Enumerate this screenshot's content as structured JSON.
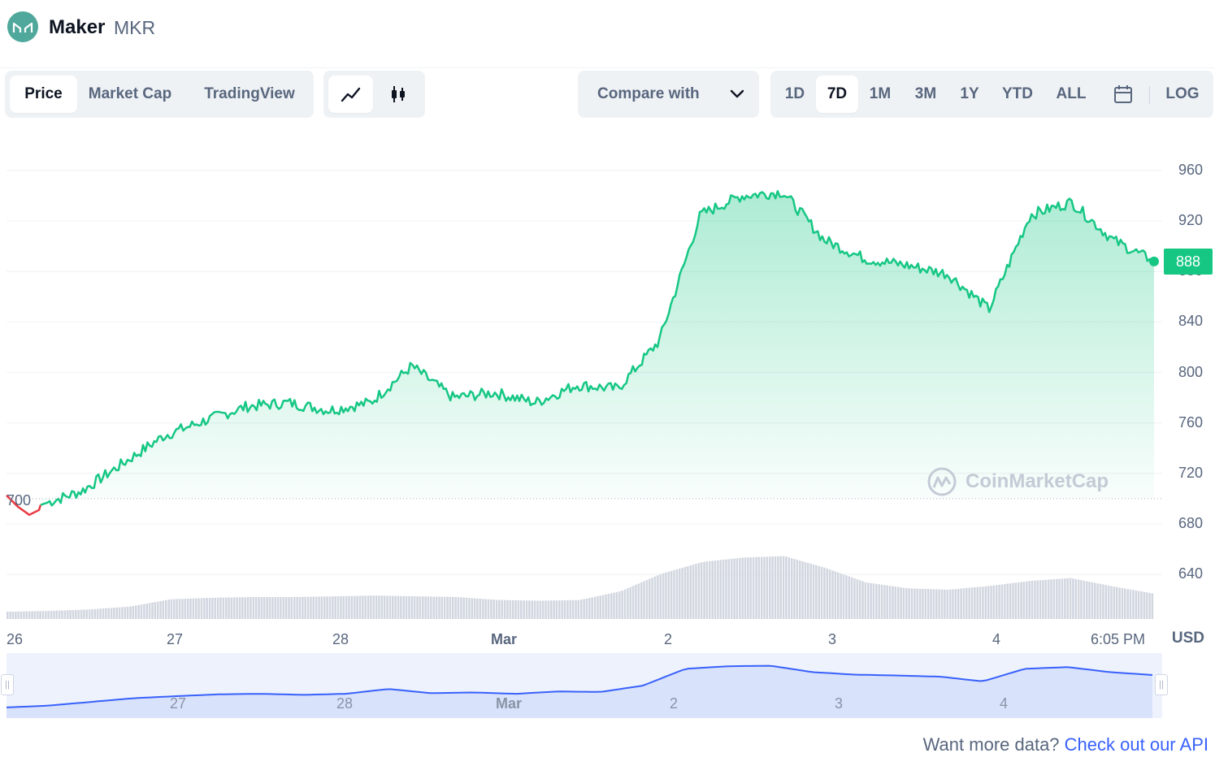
{
  "header": {
    "name": "Maker",
    "symbol": "MKR"
  },
  "tabs": [
    {
      "label": "Price",
      "active": true
    },
    {
      "label": "Market Cap",
      "active": false
    },
    {
      "label": "TradingView",
      "active": false
    }
  ],
  "chart_types": [
    {
      "icon": "line-chart-icon",
      "active": true
    },
    {
      "icon": "candlestick-icon",
      "active": false
    }
  ],
  "compare": {
    "label": "Compare with"
  },
  "ranges": [
    {
      "label": "1D",
      "active": false
    },
    {
      "label": "7D",
      "active": true
    },
    {
      "label": "1M",
      "active": false
    },
    {
      "label": "3M",
      "active": false
    },
    {
      "label": "1Y",
      "active": false
    },
    {
      "label": "YTD",
      "active": false
    },
    {
      "label": "ALL",
      "active": false
    }
  ],
  "scale_toggle": "LOG",
  "colors": {
    "up": "#16c784",
    "down": "#ea3943",
    "accent": "#3861fb",
    "volume": "#d1d6df"
  },
  "current_price_tag": "888",
  "start_price_tag": "700",
  "watermark": "CoinMarketCap",
  "currency": "USD",
  "chart_data": {
    "type": "area",
    "title": "",
    "y_ticks": [
      "960",
      "920",
      "880",
      "840",
      "800",
      "760",
      "720",
      "680",
      "640"
    ],
    "ylim": [
      620,
      980
    ],
    "x_ticks": [
      "26",
      "27",
      "28",
      "Mar",
      "2",
      "3",
      "4",
      "6:05 PM"
    ],
    "baseline": 700,
    "current": 888,
    "series": [
      {
        "x": [
          "Feb 26 00:00",
          "Feb 26 06:00",
          "Feb 26 12:00",
          "Feb 26 18:00",
          "Feb 27 00:00",
          "Feb 27 06:00",
          "Feb 27 12:00",
          "Feb 27 18:00",
          "Feb 28 00:00",
          "Feb 28 06:00",
          "Feb 28 12:00",
          "Feb 28 18:00",
          "Mar 1 00:00",
          "Mar 1 06:00",
          "Mar 1 12:00",
          "Mar 1 18:00",
          "Mar 2 00:00",
          "Mar 2 06:00",
          "Mar 2 12:00",
          "Mar 2 18:00",
          "Mar 3 00:00",
          "Mar 3 06:00",
          "Mar 3 12:00",
          "Mar 3 18:00",
          "Mar 4 00:00",
          "Mar 4 06:00",
          "Mar 4 12:00",
          "Mar 4 18:00"
        ],
        "values": [
          695,
          706,
          728,
          750,
          762,
          773,
          776,
          770,
          776,
          805,
          780,
          784,
          776,
          790,
          787,
          825,
          925,
          940,
          943,
          905,
          890,
          885,
          878,
          850,
          925,
          935,
          905,
          888
        ]
      }
    ],
    "volume": [
      0.1,
      0.11,
      0.13,
      0.17,
      0.27,
      0.29,
      0.3,
      0.3,
      0.31,
      0.32,
      0.31,
      0.3,
      0.26,
      0.25,
      0.26,
      0.38,
      0.62,
      0.78,
      0.84,
      0.86,
      0.7,
      0.5,
      0.42,
      0.4,
      0.45,
      0.52,
      0.56,
      0.45,
      0.35
    ]
  },
  "navigator": {
    "labels": [
      "27",
      "28",
      "Mar",
      "2",
      "3",
      "4"
    ]
  },
  "footer": {
    "prompt": "Want more data?",
    "link": "Check out our API"
  }
}
